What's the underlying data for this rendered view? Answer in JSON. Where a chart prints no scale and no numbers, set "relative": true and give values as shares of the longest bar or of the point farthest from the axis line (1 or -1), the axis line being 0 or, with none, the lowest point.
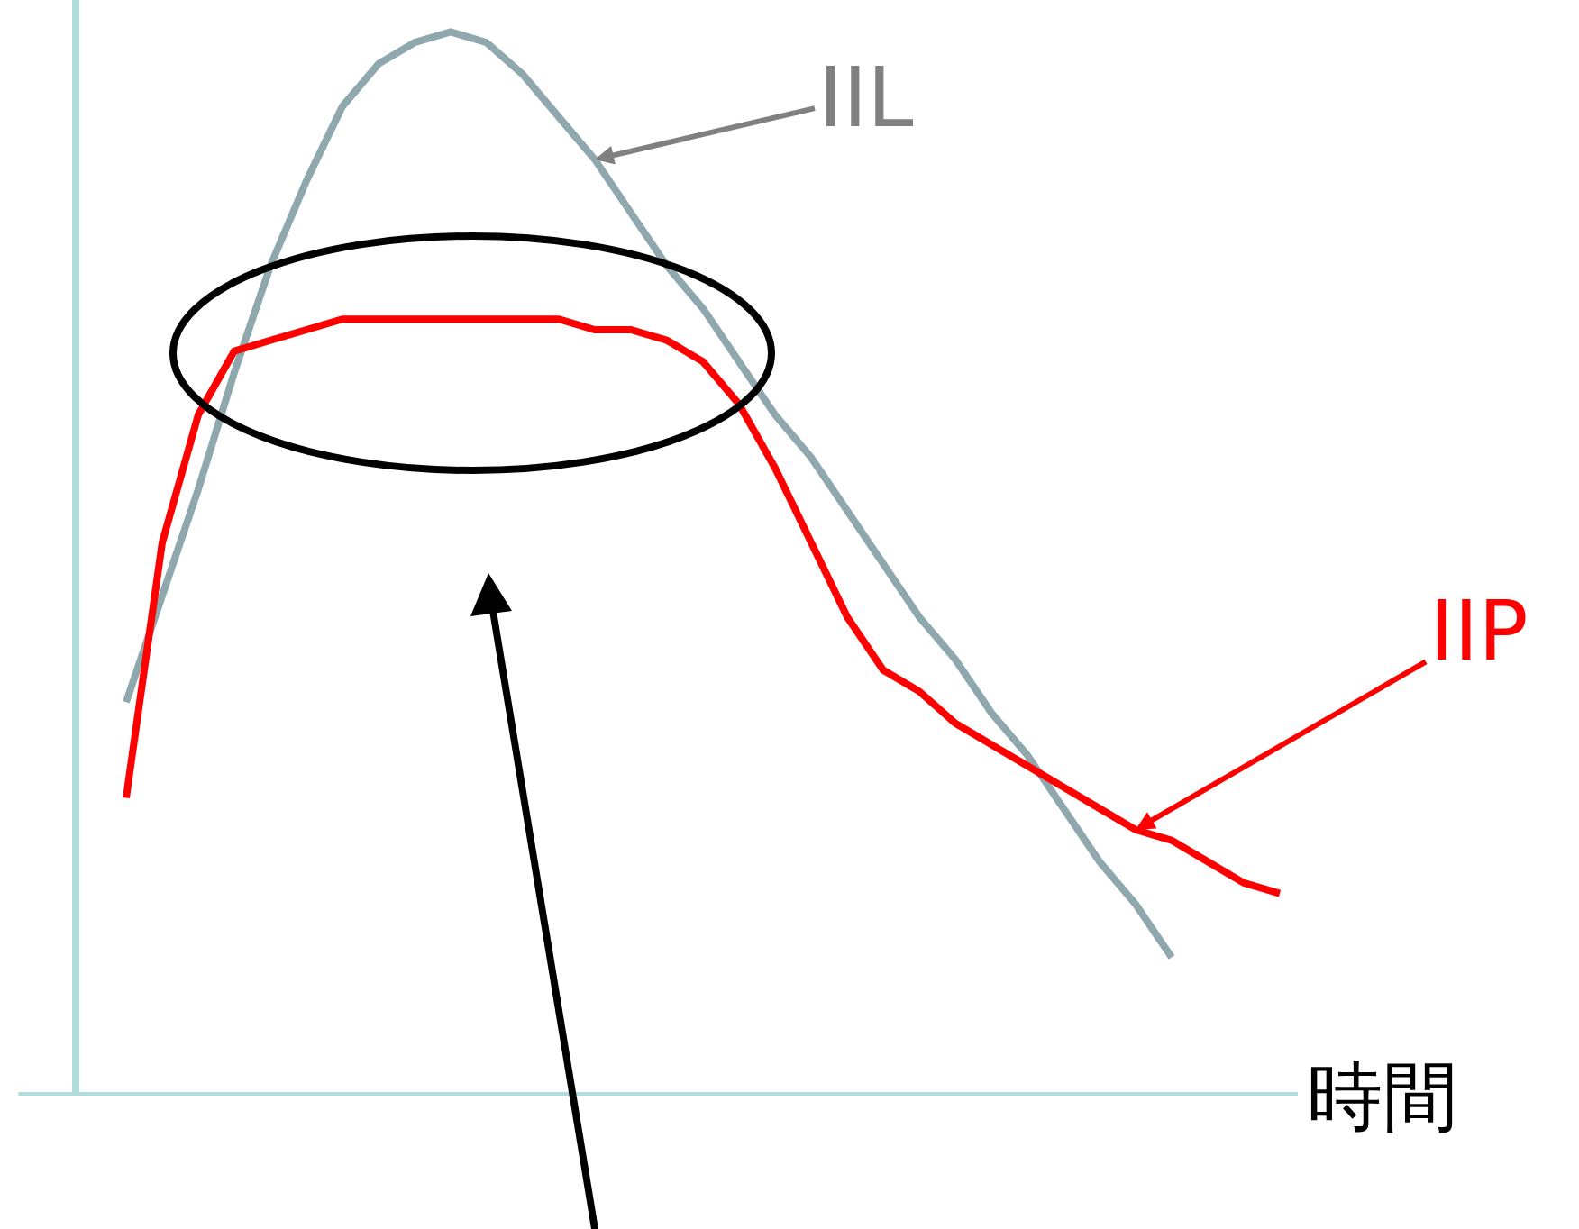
{
  "chart_data": {
    "type": "line",
    "relative": true,
    "xlabel": "時間",
    "grid": false,
    "marker": "none",
    "line_style": "solid",
    "categories": [
      null,
      null,
      null,
      null,
      null,
      null,
      null,
      null,
      null,
      null,
      null,
      null,
      null,
      null,
      null,
      null,
      null,
      null,
      null,
      null,
      null,
      null,
      null,
      null,
      null,
      null,
      null,
      null,
      null,
      null,
      null,
      null,
      null
    ],
    "series": [
      {
        "color": "#8fa8ad",
        "values": [
          0.37,
          0.47,
          0.57,
          0.68,
          0.78,
          0.86,
          0.93,
          0.97,
          0.99,
          1,
          0.99,
          0.96,
          0.92,
          0.88,
          0.83,
          0.78,
          0.74,
          0.69,
          0.64,
          0.6,
          0.55,
          0.5,
          0.45,
          0.41,
          0.36,
          0.32,
          0.27,
          0.22,
          0.18,
          0.13,
          null,
          null,
          null
        ]
      },
      {
        "color": "#ff0000",
        "values": [
          0.28,
          0.52,
          0.64,
          0.7,
          0.71,
          0.72,
          0.73,
          0.73,
          0.73,
          0.73,
          0.73,
          0.73,
          0.73,
          0.72,
          0.72,
          0.71,
          0.69,
          0.65,
          0.59,
          0.52,
          0.45,
          0.4,
          0.38,
          0.35,
          0.33,
          0.31,
          0.29,
          0.27,
          0.25,
          0.24,
          0.22,
          0.2,
          0.19
        ]
      }
    ],
    "annotations": [
      "IIL",
      "IIP"
    ]
  }
}
